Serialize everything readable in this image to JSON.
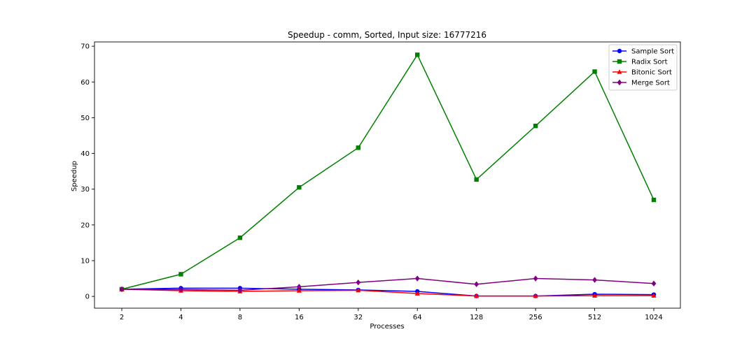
{
  "chart_data": {
    "type": "line",
    "title": "Speedup - comm, Sorted, Input size: 16777216",
    "xlabel": "Processes",
    "ylabel": "Speedup",
    "categories": [
      "2",
      "4",
      "8",
      "16",
      "32",
      "64",
      "128",
      "256",
      "512",
      "1024"
    ],
    "ylim": [
      -3.3,
      71.2
    ],
    "yticks": [
      0,
      10,
      20,
      30,
      40,
      50,
      60,
      70
    ],
    "grid": false,
    "legend_position": "top-right",
    "series": [
      {
        "name": "Sample Sort",
        "color": "#0000ff",
        "marker": "circle",
        "values": [
          2.0,
          2.3,
          2.3,
          2.0,
          1.8,
          1.4,
          0.1,
          0.1,
          0.6,
          0.5
        ]
      },
      {
        "name": "Radix Sort",
        "color": "#008000",
        "marker": "square",
        "values": [
          2.0,
          6.2,
          16.4,
          30.5,
          41.6,
          67.6,
          32.7,
          47.7,
          62.9,
          27.0
        ]
      },
      {
        "name": "Bitonic Sort",
        "color": "#ff0000",
        "marker": "triangle",
        "values": [
          2.0,
          1.6,
          1.4,
          1.6,
          1.7,
          0.8,
          0.1,
          0.1,
          0.2,
          0.2
        ]
      },
      {
        "name": "Merge Sort",
        "color": "#800080",
        "marker": "diamond",
        "values": [
          2.0,
          1.9,
          1.7,
          2.7,
          3.9,
          5.0,
          3.4,
          5.0,
          4.6,
          3.6
        ]
      }
    ]
  }
}
